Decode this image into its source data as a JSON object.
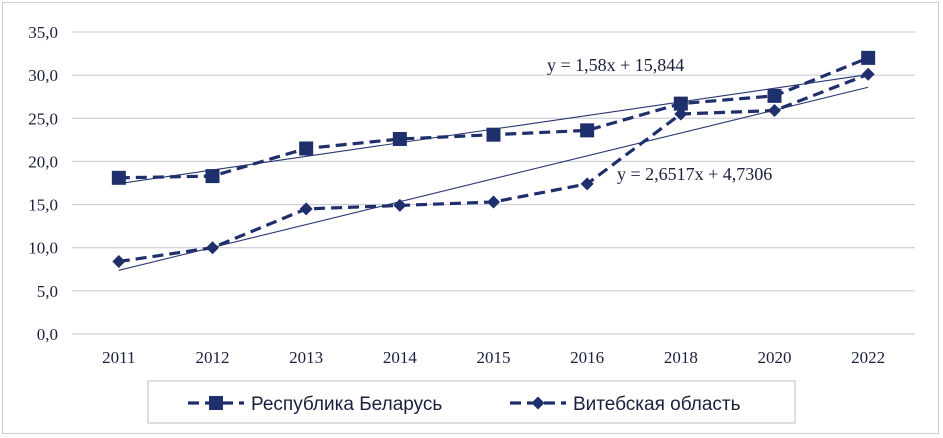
{
  "chart_data": {
    "type": "line",
    "categories": [
      "2011",
      "2012",
      "2013",
      "2014",
      "2015",
      "2016",
      "2018",
      "2020",
      "2022"
    ],
    "ylim": [
      0,
      35
    ],
    "yticks": [
      0,
      5,
      10,
      15,
      20,
      25,
      30,
      35
    ],
    "ytick_labels": [
      "0,0",
      "5,0",
      "10,0",
      "15,0",
      "20,0",
      "25,0",
      "30,0",
      "35,0"
    ],
    "grid": true,
    "legend_position": "bottom",
    "series": [
      {
        "name": "Республика Беларусь",
        "marker": "square",
        "color": "#1f2f6b",
        "values": [
          18.1,
          18.3,
          21.5,
          22.6,
          23.1,
          23.6,
          26.7,
          27.6,
          32.0
        ],
        "trendline": {
          "slope": 1.58,
          "intercept": 15.844,
          "label": "y = 1,58x + 15,844"
        }
      },
      {
        "name": "Витебская область",
        "marker": "diamond",
        "color": "#1f2f6b",
        "values": [
          8.4,
          10.0,
          14.5,
          14.9,
          15.3,
          17.4,
          25.5,
          25.9,
          30.1
        ],
        "trendline": {
          "slope": 2.6517,
          "intercept": 4.7306,
          "label": "y = 2,6517x + 4,7306"
        }
      }
    ]
  }
}
